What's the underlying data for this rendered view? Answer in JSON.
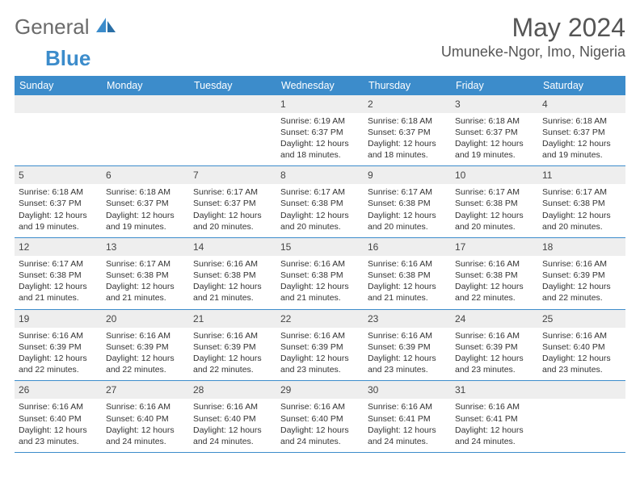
{
  "logo": {
    "word1": "General",
    "word2": "Blue"
  },
  "title": "May 2024",
  "location": "Umuneke-Ngor, Imo, Nigeria",
  "colors": {
    "brand": "#3c8ccb",
    "logoGray": "#6b6b6b",
    "dayHeader": "#eeeeee",
    "border": "#3c8ccb",
    "bg": "#ffffff",
    "text": "#333333"
  },
  "dayHeaders": [
    "Sunday",
    "Monday",
    "Tuesday",
    "Wednesday",
    "Thursday",
    "Friday",
    "Saturday"
  ],
  "weeks": [
    [
      {
        "num": "",
        "sunrise": "",
        "sunset": "",
        "daylight": ""
      },
      {
        "num": "",
        "sunrise": "",
        "sunset": "",
        "daylight": ""
      },
      {
        "num": "",
        "sunrise": "",
        "sunset": "",
        "daylight": ""
      },
      {
        "num": "1",
        "sunrise": "Sunrise: 6:19 AM",
        "sunset": "Sunset: 6:37 PM",
        "daylight": "Daylight: 12 hours and 18 minutes."
      },
      {
        "num": "2",
        "sunrise": "Sunrise: 6:18 AM",
        "sunset": "Sunset: 6:37 PM",
        "daylight": "Daylight: 12 hours and 18 minutes."
      },
      {
        "num": "3",
        "sunrise": "Sunrise: 6:18 AM",
        "sunset": "Sunset: 6:37 PM",
        "daylight": "Daylight: 12 hours and 19 minutes."
      },
      {
        "num": "4",
        "sunrise": "Sunrise: 6:18 AM",
        "sunset": "Sunset: 6:37 PM",
        "daylight": "Daylight: 12 hours and 19 minutes."
      }
    ],
    [
      {
        "num": "5",
        "sunrise": "Sunrise: 6:18 AM",
        "sunset": "Sunset: 6:37 PM",
        "daylight": "Daylight: 12 hours and 19 minutes."
      },
      {
        "num": "6",
        "sunrise": "Sunrise: 6:18 AM",
        "sunset": "Sunset: 6:37 PM",
        "daylight": "Daylight: 12 hours and 19 minutes."
      },
      {
        "num": "7",
        "sunrise": "Sunrise: 6:17 AM",
        "sunset": "Sunset: 6:37 PM",
        "daylight": "Daylight: 12 hours and 20 minutes."
      },
      {
        "num": "8",
        "sunrise": "Sunrise: 6:17 AM",
        "sunset": "Sunset: 6:38 PM",
        "daylight": "Daylight: 12 hours and 20 minutes."
      },
      {
        "num": "9",
        "sunrise": "Sunrise: 6:17 AM",
        "sunset": "Sunset: 6:38 PM",
        "daylight": "Daylight: 12 hours and 20 minutes."
      },
      {
        "num": "10",
        "sunrise": "Sunrise: 6:17 AM",
        "sunset": "Sunset: 6:38 PM",
        "daylight": "Daylight: 12 hours and 20 minutes."
      },
      {
        "num": "11",
        "sunrise": "Sunrise: 6:17 AM",
        "sunset": "Sunset: 6:38 PM",
        "daylight": "Daylight: 12 hours and 20 minutes."
      }
    ],
    [
      {
        "num": "12",
        "sunrise": "Sunrise: 6:17 AM",
        "sunset": "Sunset: 6:38 PM",
        "daylight": "Daylight: 12 hours and 21 minutes."
      },
      {
        "num": "13",
        "sunrise": "Sunrise: 6:17 AM",
        "sunset": "Sunset: 6:38 PM",
        "daylight": "Daylight: 12 hours and 21 minutes."
      },
      {
        "num": "14",
        "sunrise": "Sunrise: 6:16 AM",
        "sunset": "Sunset: 6:38 PM",
        "daylight": "Daylight: 12 hours and 21 minutes."
      },
      {
        "num": "15",
        "sunrise": "Sunrise: 6:16 AM",
        "sunset": "Sunset: 6:38 PM",
        "daylight": "Daylight: 12 hours and 21 minutes."
      },
      {
        "num": "16",
        "sunrise": "Sunrise: 6:16 AM",
        "sunset": "Sunset: 6:38 PM",
        "daylight": "Daylight: 12 hours and 21 minutes."
      },
      {
        "num": "17",
        "sunrise": "Sunrise: 6:16 AM",
        "sunset": "Sunset: 6:38 PM",
        "daylight": "Daylight: 12 hours and 22 minutes."
      },
      {
        "num": "18",
        "sunrise": "Sunrise: 6:16 AM",
        "sunset": "Sunset: 6:39 PM",
        "daylight": "Daylight: 12 hours and 22 minutes."
      }
    ],
    [
      {
        "num": "19",
        "sunrise": "Sunrise: 6:16 AM",
        "sunset": "Sunset: 6:39 PM",
        "daylight": "Daylight: 12 hours and 22 minutes."
      },
      {
        "num": "20",
        "sunrise": "Sunrise: 6:16 AM",
        "sunset": "Sunset: 6:39 PM",
        "daylight": "Daylight: 12 hours and 22 minutes."
      },
      {
        "num": "21",
        "sunrise": "Sunrise: 6:16 AM",
        "sunset": "Sunset: 6:39 PM",
        "daylight": "Daylight: 12 hours and 22 minutes."
      },
      {
        "num": "22",
        "sunrise": "Sunrise: 6:16 AM",
        "sunset": "Sunset: 6:39 PM",
        "daylight": "Daylight: 12 hours and 23 minutes."
      },
      {
        "num": "23",
        "sunrise": "Sunrise: 6:16 AM",
        "sunset": "Sunset: 6:39 PM",
        "daylight": "Daylight: 12 hours and 23 minutes."
      },
      {
        "num": "24",
        "sunrise": "Sunrise: 6:16 AM",
        "sunset": "Sunset: 6:39 PM",
        "daylight": "Daylight: 12 hours and 23 minutes."
      },
      {
        "num": "25",
        "sunrise": "Sunrise: 6:16 AM",
        "sunset": "Sunset: 6:40 PM",
        "daylight": "Daylight: 12 hours and 23 minutes."
      }
    ],
    [
      {
        "num": "26",
        "sunrise": "Sunrise: 6:16 AM",
        "sunset": "Sunset: 6:40 PM",
        "daylight": "Daylight: 12 hours and 23 minutes."
      },
      {
        "num": "27",
        "sunrise": "Sunrise: 6:16 AM",
        "sunset": "Sunset: 6:40 PM",
        "daylight": "Daylight: 12 hours and 24 minutes."
      },
      {
        "num": "28",
        "sunrise": "Sunrise: 6:16 AM",
        "sunset": "Sunset: 6:40 PM",
        "daylight": "Daylight: 12 hours and 24 minutes."
      },
      {
        "num": "29",
        "sunrise": "Sunrise: 6:16 AM",
        "sunset": "Sunset: 6:40 PM",
        "daylight": "Daylight: 12 hours and 24 minutes."
      },
      {
        "num": "30",
        "sunrise": "Sunrise: 6:16 AM",
        "sunset": "Sunset: 6:41 PM",
        "daylight": "Daylight: 12 hours and 24 minutes."
      },
      {
        "num": "31",
        "sunrise": "Sunrise: 6:16 AM",
        "sunset": "Sunset: 6:41 PM",
        "daylight": "Daylight: 12 hours and 24 minutes."
      },
      {
        "num": "",
        "sunrise": "",
        "sunset": "",
        "daylight": ""
      }
    ]
  ]
}
